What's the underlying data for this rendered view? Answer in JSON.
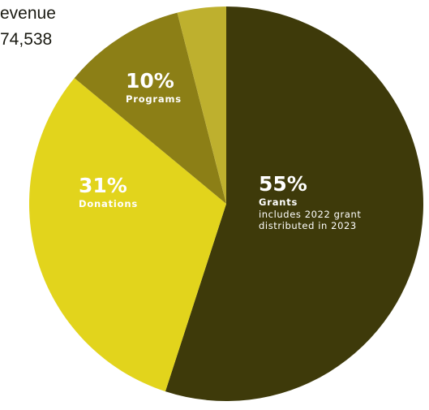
{
  "chart_data": {
    "type": "pie",
    "title_lines": [
      "evenue",
      "74,538"
    ],
    "slices": [
      {
        "label": "Grants",
        "value": 55,
        "value_label": "55%",
        "note_lines": [
          "includes 2022 grant",
          "distributed in 2023"
        ],
        "color": "#3e3a0a"
      },
      {
        "label": "Donations",
        "value": 31,
        "value_label": "31%",
        "note_lines": [],
        "color": "#e2d41c"
      },
      {
        "label": "Programs",
        "value": 10,
        "value_label": "10%",
        "note_lines": [],
        "color": "#8c7f16"
      },
      {
        "label": "",
        "value": 4,
        "value_label": "",
        "note_lines": [],
        "color": "#beb02e"
      }
    ]
  }
}
